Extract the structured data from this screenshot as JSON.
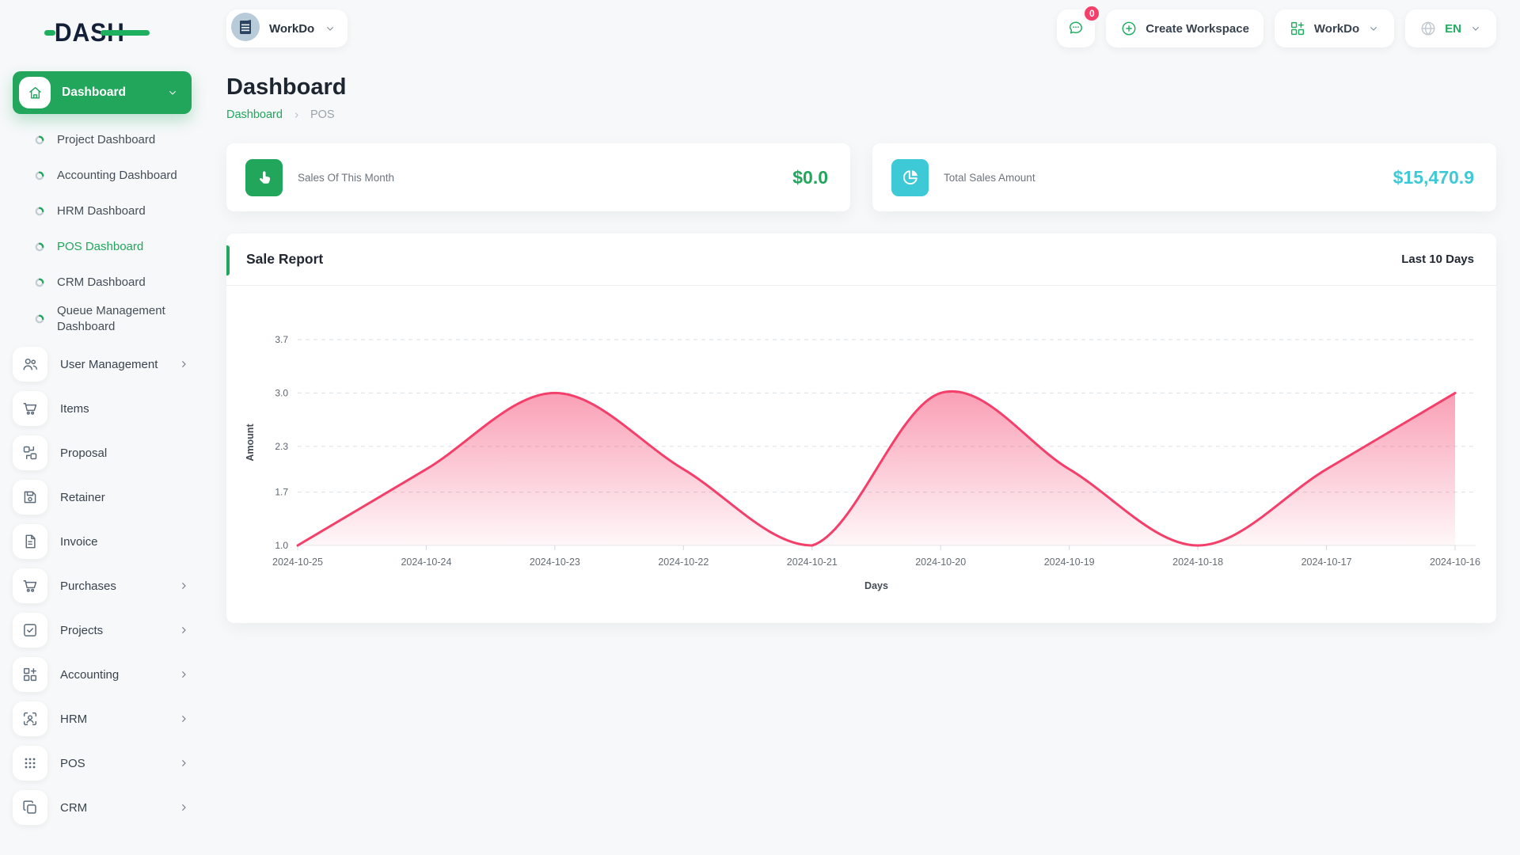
{
  "brand": {
    "logo_text": "DASH"
  },
  "header": {
    "workspace_chip": {
      "label": "WorkDo",
      "icon": "building-avatar-icon"
    },
    "messages": {
      "icon": "chat-icon",
      "badge_count": "0"
    },
    "create_workspace": {
      "label": "Create Workspace",
      "icon": "plus-circle-icon"
    },
    "workspace_menu": {
      "label": "WorkDo",
      "icon": "grid-plus-icon"
    },
    "language_menu": {
      "label": "EN",
      "icon": "globe-icon"
    }
  },
  "sidebar": {
    "dashboard": {
      "label": "Dashboard",
      "icon": "home-icon",
      "children": [
        {
          "label": "Project Dashboard",
          "active": false
        },
        {
          "label": "Accounting Dashboard",
          "active": false
        },
        {
          "label": "HRM Dashboard",
          "active": false
        },
        {
          "label": "POS Dashboard",
          "active": true
        },
        {
          "label": "CRM Dashboard",
          "active": false
        },
        {
          "label": "Queue Management Dashboard",
          "active": false
        }
      ]
    },
    "items": [
      {
        "label": "User Management",
        "icon": "users-icon",
        "expandable": true
      },
      {
        "label": "Items",
        "icon": "cart-icon",
        "expandable": false
      },
      {
        "label": "Proposal",
        "icon": "proposal-icon",
        "expandable": false
      },
      {
        "label": "Retainer",
        "icon": "retainer-icon",
        "expandable": false
      },
      {
        "label": "Invoice",
        "icon": "invoice-icon",
        "expandable": false
      },
      {
        "label": "Purchases",
        "icon": "cart-icon",
        "expandable": true
      },
      {
        "label": "Projects",
        "icon": "check-square-icon",
        "expandable": true
      },
      {
        "label": "Accounting",
        "icon": "grid-plus-icon",
        "expandable": true
      },
      {
        "label": "HRM",
        "icon": "person-focus-icon",
        "expandable": true
      },
      {
        "label": "POS",
        "icon": "dots-grid-icon",
        "expandable": true
      },
      {
        "label": "CRM",
        "icon": "copy-icon",
        "expandable": true
      }
    ]
  },
  "page": {
    "title": "Dashboard",
    "breadcrumb": {
      "items": [
        "Dashboard",
        "POS"
      ]
    }
  },
  "stats": [
    {
      "label": "Sales Of This Month",
      "value": "$0.0",
      "icon": "hand-pointer-icon",
      "color": "#21a65c"
    },
    {
      "label": "Total Sales Amount",
      "value": "$15,470.9",
      "icon": "pie-chart-icon",
      "color": "#3ec9d6"
    }
  ],
  "chart_card": {
    "title": "Sale Report",
    "range_label": "Last 10 Days"
  },
  "chart_data": {
    "type": "area",
    "title": "Sale Report",
    "x": [
      "2024-10-25",
      "2024-10-24",
      "2024-10-23",
      "2024-10-22",
      "2024-10-21",
      "2024-10-20",
      "2024-10-19",
      "2024-10-18",
      "2024-10-17",
      "2024-10-16"
    ],
    "series": [
      {
        "name": "Amount",
        "values": [
          1.0,
          2.0,
          3.0,
          2.0,
          1.0,
          3.0,
          2.0,
          1.0,
          2.0,
          3.0
        ]
      }
    ],
    "xlabel": "Days",
    "ylabel": "Amount",
    "yticks": [
      1.0,
      1.7,
      2.3,
      3.0,
      3.7
    ],
    "ylim": [
      1.0,
      3.7
    ],
    "line_color": "#f43f6b",
    "grid": "horizontal-dashed",
    "legend": "none"
  },
  "colors": {
    "primary": "#21a65c",
    "cyan": "#3ec9d6",
    "pink": "#f43f6b"
  }
}
